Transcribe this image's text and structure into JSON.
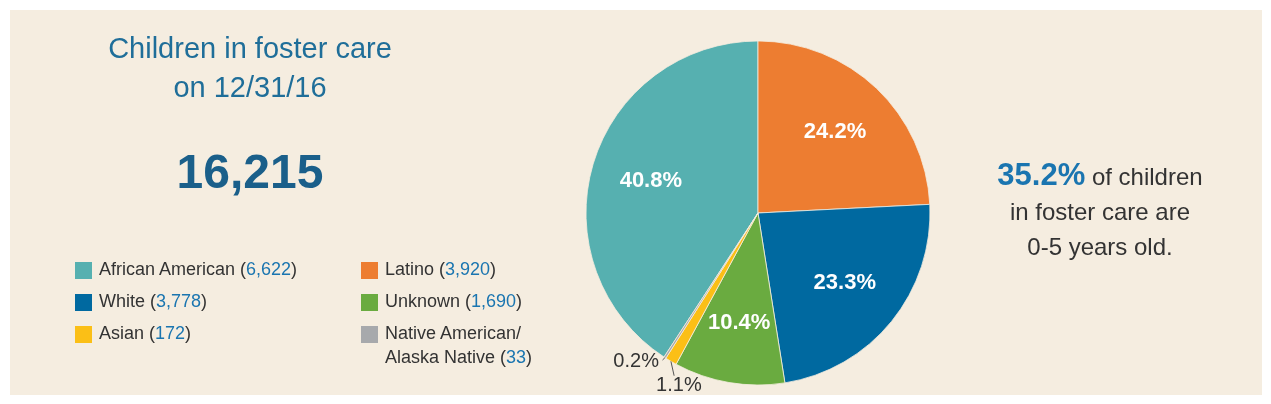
{
  "chart_data": {
    "type": "pie",
    "title": "Children in foster care on 12/31/16",
    "subtitle": "16,215",
    "categories": [
      "African American (6,622)",
      "Latino (3,920)",
      "White (3,778)",
      "Unknown (1,690)",
      "Asian (172)",
      "Native American/Alaska Native (33)"
    ],
    "values": [
      40.8,
      24.2,
      23.3,
      10.4,
      1.1,
      0.2
    ],
    "colors": [
      "#56b0b0",
      "#ed7d31",
      "#0069a0",
      "#6aab40",
      "#fbbf16",
      "#a7a9ac"
    ],
    "value_labels": [
      "40.8%",
      "24.2%",
      "23.3%",
      "10.4%",
      "1.1%",
      "0.2%"
    ],
    "annotations": [
      "35.2% of children in foster care are 0-5 years old."
    ],
    "legend": "left"
  }
}
